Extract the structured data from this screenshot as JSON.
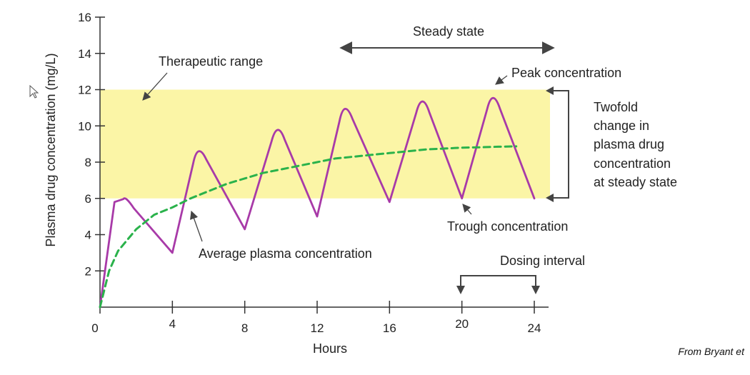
{
  "chart_data": {
    "type": "line",
    "xlabel": "Hours",
    "ylabel": "Plasma drug concentration (mg/L)",
    "xlim": [
      0,
      24
    ],
    "ylim": [
      0,
      16
    ],
    "x_ticks": [
      0,
      4,
      8,
      12,
      16,
      20,
      24
    ],
    "y_ticks": [
      2,
      4,
      6,
      8,
      10,
      12,
      14,
      16
    ],
    "grid": false,
    "therapeutic_range": {
      "label": "Therapeutic range",
      "low": 6,
      "high": 12,
      "color": "#fbf5a6"
    },
    "series": [
      {
        "color": "#a83aa8",
        "style": "solid",
        "points": [
          [
            0,
            0
          ],
          [
            0.8,
            5.8
          ],
          [
            1.4,
            6.0
          ],
          [
            4.0,
            3.0
          ],
          [
            5.4,
            9.0
          ],
          [
            8.0,
            4.3
          ],
          [
            9.8,
            10.2
          ],
          [
            12.0,
            5.0
          ],
          [
            13.5,
            11.4
          ],
          [
            16.0,
            5.8
          ],
          [
            17.8,
            11.8
          ],
          [
            20.0,
            6.0
          ],
          [
            21.7,
            12.0
          ],
          [
            24.0,
            6.0
          ]
        ]
      },
      {
        "color": "#2ab24b",
        "style": "dashed",
        "points": [
          [
            0,
            0
          ],
          [
            0.5,
            2.0
          ],
          [
            1,
            3.1
          ],
          [
            2,
            4.3
          ],
          [
            3,
            5.1
          ],
          [
            4,
            5.5
          ],
          [
            5,
            6.0
          ],
          [
            6,
            6.4
          ],
          [
            7,
            6.8
          ],
          [
            8,
            7.1
          ],
          [
            9,
            7.4
          ],
          [
            10,
            7.6
          ],
          [
            11,
            7.8
          ],
          [
            12,
            8.0
          ],
          [
            13,
            8.2
          ],
          [
            14,
            8.3
          ],
          [
            15,
            8.4
          ],
          [
            16,
            8.5
          ],
          [
            17,
            8.6
          ],
          [
            18,
            8.7
          ],
          [
            19,
            8.75
          ],
          [
            20,
            8.8
          ],
          [
            21,
            8.82
          ],
          [
            22,
            8.85
          ],
          [
            23,
            8.87
          ]
        ]
      }
    ],
    "annotations": {
      "steady_state": "Steady state",
      "peak": "Peak concentration",
      "trough": "Trough concentration",
      "average": "Average plasma concentration",
      "dosing_interval": "Dosing interval",
      "twofold": [
        "Twofold",
        "change in",
        "plasma drug",
        "concentration",
        "at steady state"
      ]
    }
  },
  "credit": "From Bryant et"
}
